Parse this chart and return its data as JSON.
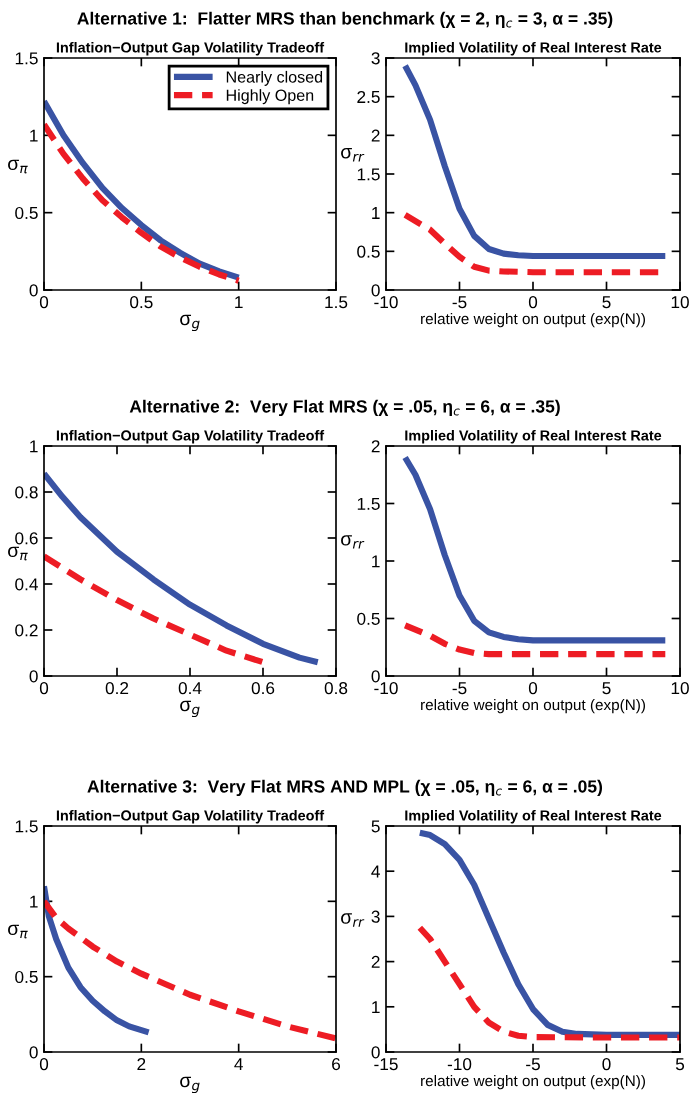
{
  "chart_data": [
    {
      "type": "line",
      "title": "Alternative 1:  Flatter MRS than benchmark (χ = 2, η$_{c}$ = 3, α = .35)",
      "subtitle": "Inflation−Output Gap Volatility Tradeoff",
      "xlabel": "σ$_{g}$",
      "ylabel": "σ$_{π}$",
      "xlim": [
        0,
        1.5
      ],
      "xticks": [
        0,
        0.5,
        1,
        1.5
      ],
      "ylim": [
        0,
        1.5
      ],
      "yticks": [
        0,
        0.5,
        1,
        1.5
      ],
      "grid": false,
      "legend": "top right",
      "series": [
        {
          "name": "Nearly closed",
          "color": "#3953a4",
          "line_style": "solid",
          "x": [
            0,
            0.1,
            0.2,
            0.3,
            0.4,
            0.5,
            0.6,
            0.7,
            0.8,
            0.9,
            1.0
          ],
          "values": [
            1.22,
            1.0,
            0.82,
            0.66,
            0.53,
            0.42,
            0.32,
            0.24,
            0.17,
            0.12,
            0.08
          ]
        },
        {
          "name": "Highly Open",
          "color": "#ed1c24",
          "line_style": "dashed",
          "x": [
            0,
            0.1,
            0.2,
            0.3,
            0.4,
            0.5,
            0.6,
            0.7,
            0.8,
            0.9,
            1.0
          ],
          "values": [
            1.07,
            0.88,
            0.72,
            0.58,
            0.47,
            0.37,
            0.28,
            0.21,
            0.15,
            0.1,
            0.06
          ]
        }
      ]
    },
    {
      "type": "line",
      "title": "Implied Volatility of Real Interest Rate",
      "xlabel": "relative weight on output (exp(N))",
      "ylabel": "σ$_{rr}$",
      "xlim": [
        -10,
        10
      ],
      "xticks": [
        -10,
        -5,
        0,
        5,
        10
      ],
      "ylim": [
        0,
        3
      ],
      "yticks": [
        0,
        0.5,
        1,
        1.5,
        2,
        2.5,
        3
      ],
      "grid": false,
      "series": [
        {
          "color": "#3953a4",
          "line_style": "solid",
          "x": [
            -8.7,
            -8,
            -7,
            -6,
            -5,
            -4,
            -3,
            -2,
            -1,
            0,
            9
          ],
          "values": [
            2.9,
            2.65,
            2.2,
            1.6,
            1.05,
            0.7,
            0.53,
            0.47,
            0.45,
            0.44,
            0.44
          ]
        },
        {
          "color": "#ed1c24",
          "line_style": "dashed",
          "x": [
            -8.7,
            -7,
            -6,
            -5,
            -4,
            -3,
            -2,
            0,
            9
          ],
          "values": [
            0.97,
            0.78,
            0.6,
            0.43,
            0.3,
            0.25,
            0.24,
            0.23,
            0.23
          ]
        }
      ]
    },
    {
      "type": "line",
      "title": "Alternative 2:  Very Flat MRS (χ = .05, η$_{c}$ = 6, α = .35)",
      "subtitle": "Inflation−Output Gap Volatility Tradeoff",
      "xlabel": "σ$_{g}$",
      "ylabel": "σ$_{π}$",
      "xlim": [
        0,
        0.8
      ],
      "xticks": [
        0,
        0.2,
        0.4,
        0.6,
        0.8
      ],
      "ylim": [
        0,
        1
      ],
      "yticks": [
        0,
        0.2,
        0.4,
        0.6,
        0.8,
        1
      ],
      "grid": false,
      "series": [
        {
          "color": "#3953a4",
          "line_style": "solid",
          "x": [
            0,
            0.05,
            0.1,
            0.2,
            0.3,
            0.4,
            0.5,
            0.6,
            0.7,
            0.75
          ],
          "values": [
            0.88,
            0.78,
            0.69,
            0.54,
            0.42,
            0.31,
            0.22,
            0.14,
            0.08,
            0.06
          ]
        },
        {
          "color": "#ed1c24",
          "line_style": "dashed",
          "x": [
            0,
            0.1,
            0.2,
            0.3,
            0.4,
            0.5,
            0.62
          ],
          "values": [
            0.52,
            0.42,
            0.33,
            0.25,
            0.18,
            0.11,
            0.05
          ]
        }
      ]
    },
    {
      "type": "line",
      "title": "Implied Volatility of Real Interest Rate",
      "xlabel": "relative weight on output (exp(N))",
      "ylabel": "σ$_{rr}$",
      "xlim": [
        -10,
        10
      ],
      "xticks": [
        -10,
        -5,
        0,
        5,
        10
      ],
      "ylim": [
        0,
        2
      ],
      "yticks": [
        0,
        0.5,
        1,
        1.5,
        2
      ],
      "grid": false,
      "series": [
        {
          "color": "#3953a4",
          "line_style": "solid",
          "x": [
            -8.7,
            -8,
            -7,
            -6,
            -5,
            -4,
            -3,
            -2,
            -1,
            0,
            9
          ],
          "values": [
            1.9,
            1.75,
            1.45,
            1.05,
            0.7,
            0.48,
            0.38,
            0.34,
            0.32,
            0.31,
            0.31
          ]
        },
        {
          "color": "#ed1c24",
          "line_style": "dashed",
          "x": [
            -8.7,
            -7,
            -6,
            -5,
            -4,
            -3,
            0,
            9
          ],
          "values": [
            0.44,
            0.35,
            0.28,
            0.23,
            0.2,
            0.19,
            0.19,
            0.19
          ]
        }
      ]
    },
    {
      "type": "line",
      "title": "Alternative 3:  Very Flat MRS AND MPL (χ = .05, η$_{c}$ = 6, α = .05)",
      "subtitle": "Inflation−Output Gap Volatility Tradeoff",
      "xlabel": "σ$_{g}$",
      "ylabel": "σ$_{π}$",
      "xlim": [
        0,
        6
      ],
      "xticks": [
        0,
        2,
        4,
        6
      ],
      "ylim": [
        0,
        1.5
      ],
      "yticks": [
        0,
        0.5,
        1,
        1.5
      ],
      "grid": false,
      "series": [
        {
          "color": "#3953a4",
          "line_style": "solid",
          "x": [
            0,
            0.1,
            0.25,
            0.5,
            0.75,
            1,
            1.25,
            1.5,
            1.75,
            2.15
          ],
          "values": [
            1.1,
            0.9,
            0.75,
            0.56,
            0.43,
            0.34,
            0.27,
            0.21,
            0.17,
            0.13
          ]
        },
        {
          "color": "#ed1c24",
          "line_style": "dashed",
          "x": [
            0,
            0.25,
            0.5,
            1,
            1.5,
            2,
            2.5,
            3,
            4,
            5,
            6
          ],
          "values": [
            1.0,
            0.89,
            0.82,
            0.7,
            0.6,
            0.52,
            0.45,
            0.38,
            0.27,
            0.17,
            0.09
          ]
        }
      ]
    },
    {
      "type": "line",
      "title": "Implied Volatility of Real Interest Rate",
      "xlabel": "relative weight on output (exp(N))",
      "ylabel": "σ$_{rr}$",
      "xlim": [
        -15,
        5
      ],
      "xticks": [
        -15,
        -10,
        -5,
        0,
        5
      ],
      "ylim": [
        0,
        5
      ],
      "yticks": [
        0,
        1,
        2,
        3,
        4,
        5
      ],
      "grid": false,
      "series": [
        {
          "color": "#3953a4",
          "line_style": "solid",
          "x": [
            -12.7,
            -12,
            -11,
            -10,
            -9,
            -8,
            -7,
            -6,
            -5,
            -4,
            -3,
            -2,
            0,
            5
          ],
          "values": [
            4.85,
            4.8,
            4.6,
            4.25,
            3.7,
            2.95,
            2.2,
            1.5,
            0.95,
            0.6,
            0.45,
            0.4,
            0.38,
            0.38
          ]
        },
        {
          "color": "#ed1c24",
          "line_style": "dashed",
          "x": [
            -12.7,
            -12,
            -11,
            -10,
            -9,
            -8,
            -7,
            -6,
            -5,
            0,
            5
          ],
          "values": [
            2.75,
            2.5,
            2.0,
            1.5,
            1.0,
            0.65,
            0.45,
            0.36,
            0.33,
            0.32,
            0.32
          ]
        }
      ]
    }
  ]
}
